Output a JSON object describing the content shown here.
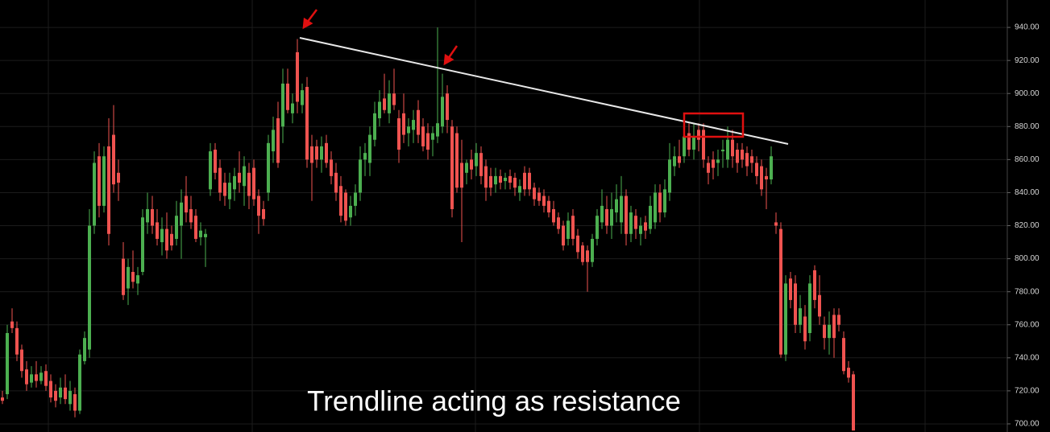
{
  "chart_data": {
    "type": "candlestick",
    "annotation": "Trendline acting as resistance",
    "up_color": "#4caf50",
    "down_color": "#ef5350",
    "ylim": [
      695.1,
      956.6
    ],
    "yticks": [
      {
        "value": 700,
        "label": "700.00"
      },
      {
        "value": 720,
        "label": "720.00"
      },
      {
        "value": 740,
        "label": "740.00"
      },
      {
        "value": 760,
        "label": "760.00"
      },
      {
        "value": 780,
        "label": "780.00"
      },
      {
        "value": 800,
        "label": "800.00"
      },
      {
        "value": 820,
        "label": "820.00"
      },
      {
        "value": 840,
        "label": "840.00"
      },
      {
        "value": 860,
        "label": "860.00"
      },
      {
        "value": 880,
        "label": "880.00"
      },
      {
        "value": 900,
        "label": "900.00"
      },
      {
        "value": 920,
        "label": "920.00"
      },
      {
        "value": 940,
        "label": "940.00"
      }
    ],
    "grid": true,
    "ohlc": [
      [
        716,
        720,
        712,
        714
      ],
      [
        718,
        760,
        715,
        755
      ],
      [
        762,
        770,
        755,
        758
      ],
      [
        758,
        762,
        738,
        742
      ],
      [
        745,
        748,
        728,
        732
      ],
      [
        733,
        738,
        720,
        724
      ],
      [
        725,
        735,
        722,
        730
      ],
      [
        730,
        738,
        722,
        726
      ],
      [
        726,
        735,
        724,
        731
      ],
      [
        732,
        736,
        720,
        723
      ],
      [
        726,
        730,
        713,
        716
      ],
      [
        720,
        724,
        710,
        714
      ],
      [
        716,
        728,
        712,
        722
      ],
      [
        722,
        730,
        712,
        715
      ],
      [
        712,
        726,
        708,
        720
      ],
      [
        718,
        722,
        704,
        708
      ],
      [
        708,
        745,
        706,
        742
      ],
      [
        738,
        756,
        736,
        752
      ],
      [
        745,
        830,
        740,
        820
      ],
      [
        820,
        865,
        815,
        858
      ],
      [
        862,
        870,
        825,
        832
      ],
      [
        832,
        868,
        828,
        862
      ],
      [
        868,
        885,
        808,
        815
      ],
      [
        875,
        893,
        840,
        845
      ],
      [
        852,
        860,
        835,
        846
      ],
      [
        800,
        810,
        775,
        778
      ],
      [
        782,
        800,
        772,
        795
      ],
      [
        792,
        805,
        782,
        786
      ],
      [
        785,
        795,
        778,
        790
      ],
      [
        792,
        830,
        790,
        825
      ],
      [
        822,
        840,
        815,
        830
      ],
      [
        830,
        838,
        815,
        820
      ],
      [
        822,
        830,
        808,
        812
      ],
      [
        810,
        825,
        802,
        818
      ],
      [
        818,
        828,
        800,
        805
      ],
      [
        815,
        820,
        805,
        808
      ],
      [
        812,
        835,
        808,
        826
      ],
      [
        820,
        842,
        800,
        834
      ],
      [
        838,
        850,
        822,
        828
      ],
      [
        830,
        838,
        818,
        822
      ],
      [
        826,
        830,
        810,
        812
      ],
      [
        813,
        822,
        808,
        817
      ],
      [
        813,
        818,
        795,
        815
      ],
      [
        842,
        870,
        838,
        865
      ],
      [
        866,
        870,
        848,
        852
      ],
      [
        855,
        860,
        835,
        840
      ],
      [
        846,
        852,
        832,
        838
      ],
      [
        836,
        852,
        830,
        846
      ],
      [
        842,
        855,
        835,
        850
      ],
      [
        852,
        865,
        840,
        846
      ],
      [
        844,
        862,
        832,
        856
      ],
      [
        852,
        858,
        830,
        838
      ],
      [
        855,
        860,
        832,
        836
      ],
      [
        838,
        842,
        815,
        826
      ],
      [
        830,
        835,
        820,
        824
      ],
      [
        840,
        875,
        835,
        870
      ],
      [
        865,
        886,
        858,
        878
      ],
      [
        885,
        895,
        855,
        858
      ],
      [
        880,
        915,
        870,
        906
      ],
      [
        906,
        915,
        888,
        890
      ],
      [
        888,
        900,
        882,
        894
      ],
      [
        925,
        933,
        888,
        895
      ],
      [
        893,
        906,
        888,
        902
      ],
      [
        904,
        910,
        855,
        860
      ],
      [
        868,
        875,
        835,
        858
      ],
      [
        868,
        872,
        855,
        860
      ],
      [
        860,
        874,
        852,
        868
      ],
      [
        870,
        875,
        855,
        858
      ],
      [
        860,
        865,
        845,
        850
      ],
      [
        852,
        858,
        835,
        840
      ],
      [
        844,
        850,
        822,
        826
      ],
      [
        840,
        842,
        820,
        823
      ],
      [
        825,
        838,
        820,
        832
      ],
      [
        832,
        845,
        826,
        840
      ],
      [
        840,
        868,
        835,
        860
      ],
      [
        860,
        870,
        850,
        864
      ],
      [
        858,
        880,
        850,
        875
      ],
      [
        872,
        895,
        868,
        888
      ],
      [
        885,
        902,
        880,
        895
      ],
      [
        897,
        912,
        888,
        890
      ],
      [
        888,
        908,
        882,
        900
      ],
      [
        900,
        915,
        890,
        893
      ],
      [
        885,
        890,
        858,
        866
      ],
      [
        888,
        900,
        870,
        875
      ],
      [
        876,
        885,
        868,
        880
      ],
      [
        878,
        890,
        870,
        884
      ],
      [
        890,
        896,
        870,
        875
      ],
      [
        880,
        885,
        865,
        868
      ],
      [
        876,
        882,
        860,
        866
      ],
      [
        872,
        880,
        862,
        876
      ],
      [
        874,
        940,
        870,
        882
      ],
      [
        880,
        912,
        876,
        898
      ],
      [
        900,
        905,
        876,
        884
      ],
      [
        880,
        884,
        825,
        830
      ],
      [
        876,
        880,
        840,
        843
      ],
      [
        858,
        872,
        810,
        843
      ],
      [
        852,
        860,
        845,
        858
      ],
      [
        860,
        866,
        848,
        854
      ],
      [
        856,
        870,
        850,
        864
      ],
      [
        864,
        868,
        845,
        850
      ],
      [
        856,
        860,
        835,
        843
      ],
      [
        850,
        855,
        838,
        843
      ],
      [
        845,
        855,
        840,
        850
      ],
      [
        850,
        854,
        842,
        846
      ],
      [
        847,
        852,
        842,
        849
      ],
      [
        850,
        854,
        842,
        846
      ],
      [
        849,
        852,
        838,
        843
      ],
      [
        840,
        848,
        835,
        844
      ],
      [
        852,
        856,
        838,
        842
      ],
      [
        852,
        855,
        838,
        842
      ],
      [
        843,
        846,
        832,
        836
      ],
      [
        840,
        843,
        832,
        835
      ],
      [
        838,
        842,
        828,
        832
      ],
      [
        835,
        838,
        825,
        828
      ],
      [
        830,
        835,
        820,
        822
      ],
      [
        825,
        828,
        815,
        818
      ],
      [
        820,
        823,
        805,
        808
      ],
      [
        812,
        828,
        808,
        823
      ],
      [
        826,
        830,
        808,
        812
      ],
      [
        814,
        818,
        800,
        804
      ],
      [
        808,
        810,
        796,
        798
      ],
      [
        805,
        808,
        780,
        798
      ],
      [
        798,
        815,
        795,
        812
      ],
      [
        812,
        830,
        808,
        826
      ],
      [
        822,
        842,
        818,
        832
      ],
      [
        830,
        838,
        815,
        820
      ],
      [
        820,
        840,
        812,
        830
      ],
      [
        828,
        845,
        822,
        836
      ],
      [
        822,
        850,
        815,
        838
      ],
      [
        838,
        842,
        808,
        815
      ],
      [
        815,
        832,
        810,
        828
      ],
      [
        826,
        830,
        812,
        818
      ],
      [
        815,
        825,
        808,
        820
      ],
      [
        822,
        826,
        812,
        817
      ],
      [
        818,
        838,
        815,
        832
      ],
      [
        822,
        845,
        818,
        840
      ],
      [
        840,
        845,
        822,
        828
      ],
      [
        828,
        848,
        825,
        842
      ],
      [
        840,
        870,
        835,
        860
      ],
      [
        856,
        868,
        850,
        862
      ],
      [
        862,
        872,
        855,
        858
      ],
      [
        862,
        880,
        858,
        874
      ],
      [
        876,
        882,
        862,
        866
      ],
      [
        866,
        882,
        860,
        874
      ],
      [
        878,
        882,
        865,
        872
      ],
      [
        878,
        882,
        855,
        860
      ],
      [
        858,
        862,
        845,
        852
      ],
      [
        860,
        865,
        848,
        855
      ],
      [
        858,
        866,
        850,
        860
      ],
      [
        865,
        872,
        855,
        866
      ],
      [
        860,
        880,
        855,
        872
      ],
      [
        872,
        878,
        855,
        862
      ],
      [
        866,
        870,
        852,
        858
      ],
      [
        866,
        870,
        855,
        860
      ],
      [
        864,
        868,
        850,
        856
      ],
      [
        862,
        866,
        852,
        858
      ],
      [
        858,
        862,
        845,
        850
      ],
      [
        856,
        860,
        838,
        842
      ],
      [
        850,
        855,
        830,
        848
      ],
      [
        848,
        868,
        845,
        862
      ],
      [
        822,
        828,
        815,
        820
      ],
      [
        818,
        822,
        740,
        742
      ],
      [
        742,
        790,
        738,
        785
      ],
      [
        788,
        792,
        770,
        775
      ],
      [
        785,
        790,
        755,
        760
      ],
      [
        760,
        778,
        755,
        770
      ],
      [
        765,
        772,
        745,
        750
      ],
      [
        755,
        790,
        750,
        785
      ],
      [
        793,
        796,
        770,
        775
      ],
      [
        778,
        790,
        760,
        765
      ],
      [
        760,
        765,
        745,
        752
      ],
      [
        752,
        768,
        742,
        760
      ],
      [
        766,
        770,
        740,
        752
      ],
      [
        766,
        770,
        756,
        760
      ],
      [
        752,
        756,
        730,
        732
      ],
      [
        734,
        738,
        725,
        728
      ],
      [
        730,
        732,
        696,
        696
      ]
    ]
  }
}
